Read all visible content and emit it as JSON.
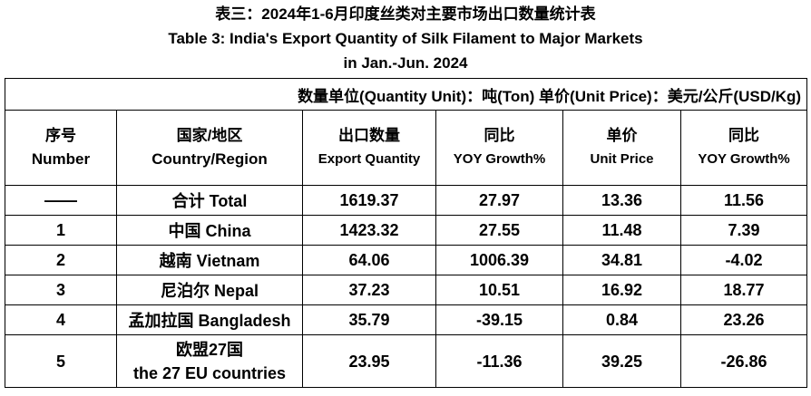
{
  "header": {
    "title_lines": [
      "表三：2024年1-6月印度丝类对主要市场出口数量统计表",
      "Table 3: India's Export Quantity of Silk Filament to Major Markets",
      "in Jan.-Jun. 2024"
    ]
  },
  "table": {
    "unit_note": "数量单位(Quantity Unit)：吨(Ton)  单价(Unit Price)：美元/公斤(USD/Kg)",
    "columns": [
      [
        "序号",
        "Number"
      ],
      [
        "国家/地区",
        "Country/Region"
      ],
      [
        "出口数量",
        "Export Quantity"
      ],
      [
        "同比",
        "YOY Growth%"
      ],
      [
        "单价",
        "Unit Price"
      ],
      [
        "同比",
        "YOY Growth%"
      ]
    ],
    "rows": [
      [
        "——",
        "合计 Total",
        "1619.37",
        "27.97",
        "13.36",
        "11.56"
      ],
      [
        "1",
        "中国 China",
        "1423.32",
        "27.55",
        "11.48",
        "7.39"
      ],
      [
        "2",
        "越南 Vietnam",
        "64.06",
        "1006.39",
        "34.81",
        "-4.02"
      ],
      [
        "3",
        "尼泊尔 Nepal",
        "37.23",
        "10.51",
        "16.92",
        "18.77"
      ],
      [
        "4",
        "孟加拉国 Bangladesh",
        "35.79",
        "-39.15",
        "0.84",
        "23.26"
      ],
      [
        "5",
        [
          "欧盟27国",
          "the 27 EU countries"
        ],
        "23.95",
        "-11.36",
        "39.25",
        "-26.86"
      ]
    ]
  }
}
